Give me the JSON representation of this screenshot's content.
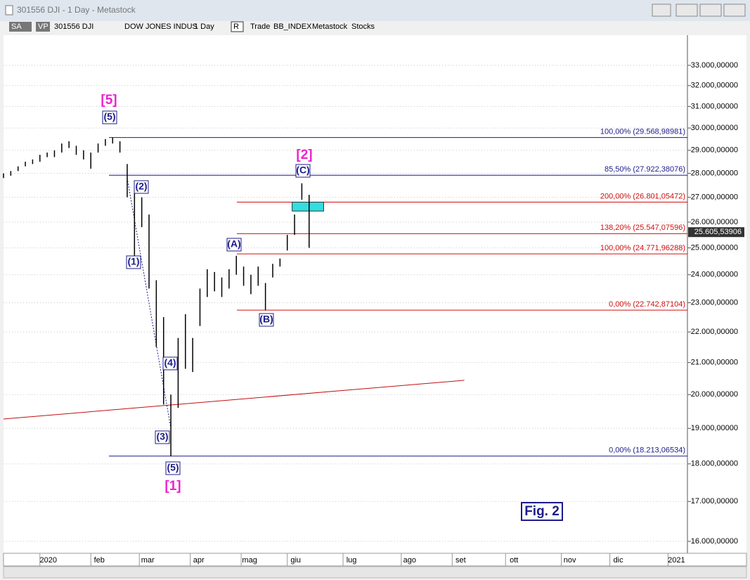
{
  "window": {
    "title": "301556 DJI - 1 Day - Metastock",
    "toolbar": [
      "SA",
      "VP",
      "301556 DJI",
      "DOW JONES INDUS",
      "1 Day",
      "R",
      "Trade",
      "BB_INDEX",
      "Metastock",
      "Stocks"
    ]
  },
  "chart_data": {
    "type": "ohlc",
    "log_scale": true,
    "grid": true,
    "color": "#000000",
    "x": [
      0,
      3,
      6,
      9,
      12,
      15,
      18,
      21,
      24,
      27,
      30,
      33,
      36,
      39,
      42,
      45,
      48,
      51,
      54,
      57,
      60,
      63,
      66,
      69,
      72,
      75,
      78,
      81,
      84,
      87,
      90,
      93,
      96,
      99,
      102,
      105,
      108,
      111,
      114,
      117,
      120,
      123,
      126
    ],
    "highs": [
      28000,
      28100,
      28300,
      28500,
      28600,
      28800,
      28900,
      29000,
      29300,
      29400,
      29200,
      29000,
      28900,
      29300,
      29500,
      29570,
      29400,
      28400,
      27200,
      27000,
      26300,
      23800,
      22500,
      20000,
      21800,
      22600,
      21800,
      23500,
      24200,
      24100,
      23900,
      24200,
      24700,
      24300,
      24000,
      24300,
      23700,
      24400,
      24600,
      25500,
      26300,
      27580,
      27100
    ],
    "lows": [
      27800,
      27900,
      28100,
      28300,
      28400,
      28500,
      28700,
      28700,
      28900,
      29100,
      28800,
      28600,
      28200,
      28900,
      29200,
      29300,
      28900,
      27000,
      24700,
      25800,
      23500,
      21500,
      19700,
      18213,
      19600,
      20800,
      20700,
      22200,
      23200,
      23400,
      23200,
      23500,
      24000,
      23600,
      23300,
      23600,
      22742,
      23900,
      24300,
      24900,
      25500,
      26900,
      25000
    ],
    "xlim": [
      0,
      282
    ],
    "xticks": [
      {
        "value": 15,
        "label": "2020"
      },
      {
        "value": 36,
        "label": "feb"
      },
      {
        "value": 56,
        "label": "mar"
      },
      {
        "value": 77,
        "label": "apr"
      },
      {
        "value": 98,
        "label": "mag"
      },
      {
        "value": 117,
        "label": "giu"
      },
      {
        "value": 140,
        "label": "lug"
      },
      {
        "value": 164,
        "label": "ago"
      },
      {
        "value": 185,
        "label": "set"
      },
      {
        "value": 207,
        "label": "ott"
      },
      {
        "value": 230,
        "label": "nov"
      },
      {
        "value": 250,
        "label": "dic"
      },
      {
        "value": 274,
        "label": "2021"
      }
    ],
    "ylim": [
      15745,
      34550
    ],
    "yticks": [
      {
        "value": 16000,
        "label": "16.000,00000"
      },
      {
        "value": 17000,
        "label": "17.000,00000"
      },
      {
        "value": 18000,
        "label": "18.000,00000"
      },
      {
        "value": 19000,
        "label": "19.000,00000"
      },
      {
        "value": 20000,
        "label": "20.000,00000"
      },
      {
        "value": 21000,
        "label": "21.000,00000"
      },
      {
        "value": 22000,
        "label": "22.000,00000"
      },
      {
        "value": 23000,
        "label": "23.000,00000"
      },
      {
        "value": 24000,
        "label": "24.000,00000"
      },
      {
        "value": 25000,
        "label": "25.000,00000"
      },
      {
        "value": 26000,
        "label": "26.000,00000"
      },
      {
        "value": 27000,
        "label": "27.000,00000"
      },
      {
        "value": 28000,
        "label": "28.000,00000"
      },
      {
        "value": 29000,
        "label": "29.000,00000"
      },
      {
        "value": 30000,
        "label": "30.000,00000"
      },
      {
        "value": 31000,
        "label": "31.000,00000"
      },
      {
        "value": 32000,
        "label": "32.000,00000"
      },
      {
        "value": 33000,
        "label": "33.000,00000"
      }
    ],
    "last": {
      "value": 25605.53906,
      "label": "25.605,53906"
    },
    "levels": [
      {
        "label": "100,00% (29.568,98981)",
        "value": 29568.98981,
        "color": "#1c1c8a"
      },
      {
        "label": "85,50% (27.922,38076)",
        "value": 27922.38076,
        "color": "#1c1c8a"
      },
      {
        "label": "0,00% (18.213,06534)",
        "value": 18213.06534,
        "color": "#1c1c8a"
      },
      {
        "label": "200,00% (26.801,05472)",
        "value": 26801.05472,
        "color": "#d01010"
      },
      {
        "label": "138,20% (25.547,07596)",
        "value": 25547.07596,
        "color": "#d01010"
      },
      {
        "label": "100,00% (24.771,96288)",
        "value": 24771.96288,
        "color": "#d01010"
      },
      {
        "label": "0,00% (22.742,87104)",
        "value": 22742.87104,
        "color": "#d01010"
      }
    ],
    "trendlines": [
      {
        "x": [
          0,
          190
        ],
        "y": [
          19270,
          20440
        ],
        "color": "#c01010"
      },
      {
        "x": [
          51,
          69
        ],
        "y": [
          27800,
          19000
        ],
        "color": "#1c1c8a"
      }
    ],
    "box": {
      "x": [
        119,
        132
      ],
      "y": [
        26440,
        26801
      ],
      "color": "#33dde0"
    },
    "wave_labels": [
      "[5]",
      "(5)",
      "[2]",
      "(C)",
      "(2)",
      "(1)",
      "(A)",
      "(B)",
      "(4)",
      "(3)",
      "(5)",
      "[1]"
    ],
    "annotation": "Fig. 2"
  }
}
